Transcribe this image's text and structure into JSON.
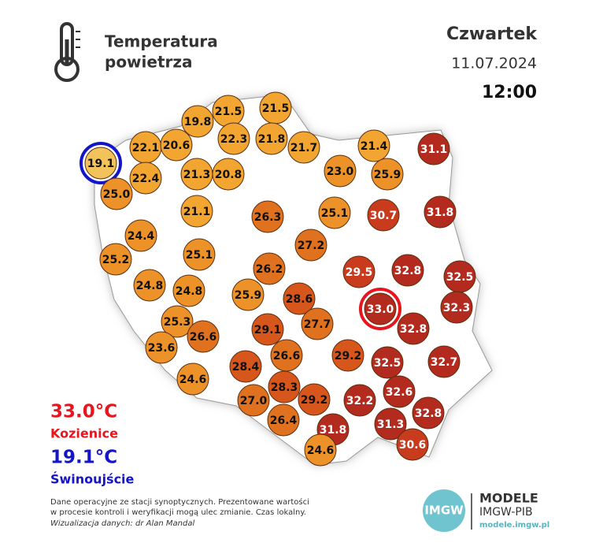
{
  "header": {
    "title_lines": [
      "Temperatura",
      "powietrza"
    ],
    "day": "Czwartek",
    "date": "11.07.2024",
    "time": "12:00"
  },
  "extremes": {
    "max": {
      "value": "33.0°C",
      "station": "Kozienice",
      "color": "#e8141e"
    },
    "min": {
      "value": "19.1°C",
      "station": "Świnoujście",
      "color": "#1414c8"
    }
  },
  "footer": {
    "lines": [
      "Dane operacyjne ze stacji synoptycznych. Prezentowane wartości",
      "w procesie kontroli i weryfikacji mogą ulec zmianie. Czas lokalny."
    ],
    "credit": "Wizualizacja danych: dr Alan Mandal"
  },
  "logo": {
    "badge": "IMGW",
    "name": "MODELE",
    "org": "IMGW-PIB",
    "url": "modele.imgw.pl"
  },
  "stations": [
    {
      "value": "19.1",
      "color": "#f2c35a",
      "ring": "#1414c8"
    },
    {
      "value": "22.1",
      "color": "#f2a531"
    },
    {
      "value": "20.6",
      "color": "#f2a531"
    },
    {
      "value": "19.8",
      "color": "#f2a531"
    },
    {
      "value": "21.5",
      "color": "#f2a531"
    },
    {
      "value": "21.5",
      "color": "#f2a531"
    },
    {
      "value": "22.3",
      "color": "#f2a531"
    },
    {
      "value": "21.8",
      "color": "#f2a531"
    },
    {
      "value": "21.7",
      "color": "#f2a531"
    },
    {
      "value": "21.4",
      "color": "#f2a531"
    },
    {
      "value": "31.1",
      "color": "#b32b1e"
    },
    {
      "value": "22.4",
      "color": "#f2a531"
    },
    {
      "value": "21.3",
      "color": "#f2a531"
    },
    {
      "value": "20.8",
      "color": "#f2a531"
    },
    {
      "value": "23.0",
      "color": "#ec9228"
    },
    {
      "value": "25.9",
      "color": "#ec9228"
    },
    {
      "value": "25.0",
      "color": "#ec9228"
    },
    {
      "value": "21.1",
      "color": "#f2a531"
    },
    {
      "value": "26.3",
      "color": "#e0721f"
    },
    {
      "value": "25.1",
      "color": "#ec9228"
    },
    {
      "value": "30.7",
      "color": "#c83b1d"
    },
    {
      "value": "31.8",
      "color": "#b32b1e"
    },
    {
      "value": "24.4",
      "color": "#ec9228"
    },
    {
      "value": "27.2",
      "color": "#e0721f"
    },
    {
      "value": "25.2",
      "color": "#ec9228"
    },
    {
      "value": "25.1",
      "color": "#ec9228"
    },
    {
      "value": "26.2",
      "color": "#e0721f"
    },
    {
      "value": "29.5",
      "color": "#c83b1d"
    },
    {
      "value": "32.8",
      "color": "#b32b1e"
    },
    {
      "value": "32.5",
      "color": "#b32b1e"
    },
    {
      "value": "24.8",
      "color": "#ec9228"
    },
    {
      "value": "24.8",
      "color": "#ec9228"
    },
    {
      "value": "25.9",
      "color": "#ec9228"
    },
    {
      "value": "28.6",
      "color": "#d6561b"
    },
    {
      "value": "33.0",
      "color": "#b32b1e",
      "ring": "#e8141e"
    },
    {
      "value": "32.3",
      "color": "#b32b1e"
    },
    {
      "value": "25.3",
      "color": "#ec9228"
    },
    {
      "value": "26.6",
      "color": "#e0721f"
    },
    {
      "value": "29.1",
      "color": "#d6561b"
    },
    {
      "value": "27.7",
      "color": "#e0721f"
    },
    {
      "value": "32.8",
      "color": "#b32b1e"
    },
    {
      "value": "23.6",
      "color": "#ec9228"
    },
    {
      "value": "26.6",
      "color": "#e0721f"
    },
    {
      "value": "29.2",
      "color": "#d6561b"
    },
    {
      "value": "32.5",
      "color": "#b32b1e"
    },
    {
      "value": "32.7",
      "color": "#b32b1e"
    },
    {
      "value": "28.4",
      "color": "#d6561b"
    },
    {
      "value": "24.6",
      "color": "#ec9228"
    },
    {
      "value": "28.3",
      "color": "#d6561b"
    },
    {
      "value": "32.6",
      "color": "#b32b1e"
    },
    {
      "value": "27.0",
      "color": "#e0721f"
    },
    {
      "value": "29.2",
      "color": "#d6561b"
    },
    {
      "value": "32.2",
      "color": "#b32b1e"
    },
    {
      "value": "32.8",
      "color": "#b32b1e"
    },
    {
      "value": "26.4",
      "color": "#e0721f"
    },
    {
      "value": "31.3",
      "color": "#b32b1e"
    },
    {
      "value": "31.8",
      "color": "#b32b1e"
    },
    {
      "value": "30.6",
      "color": "#c83b1d"
    },
    {
      "value": "24.6",
      "color": "#ec9228"
    }
  ]
}
